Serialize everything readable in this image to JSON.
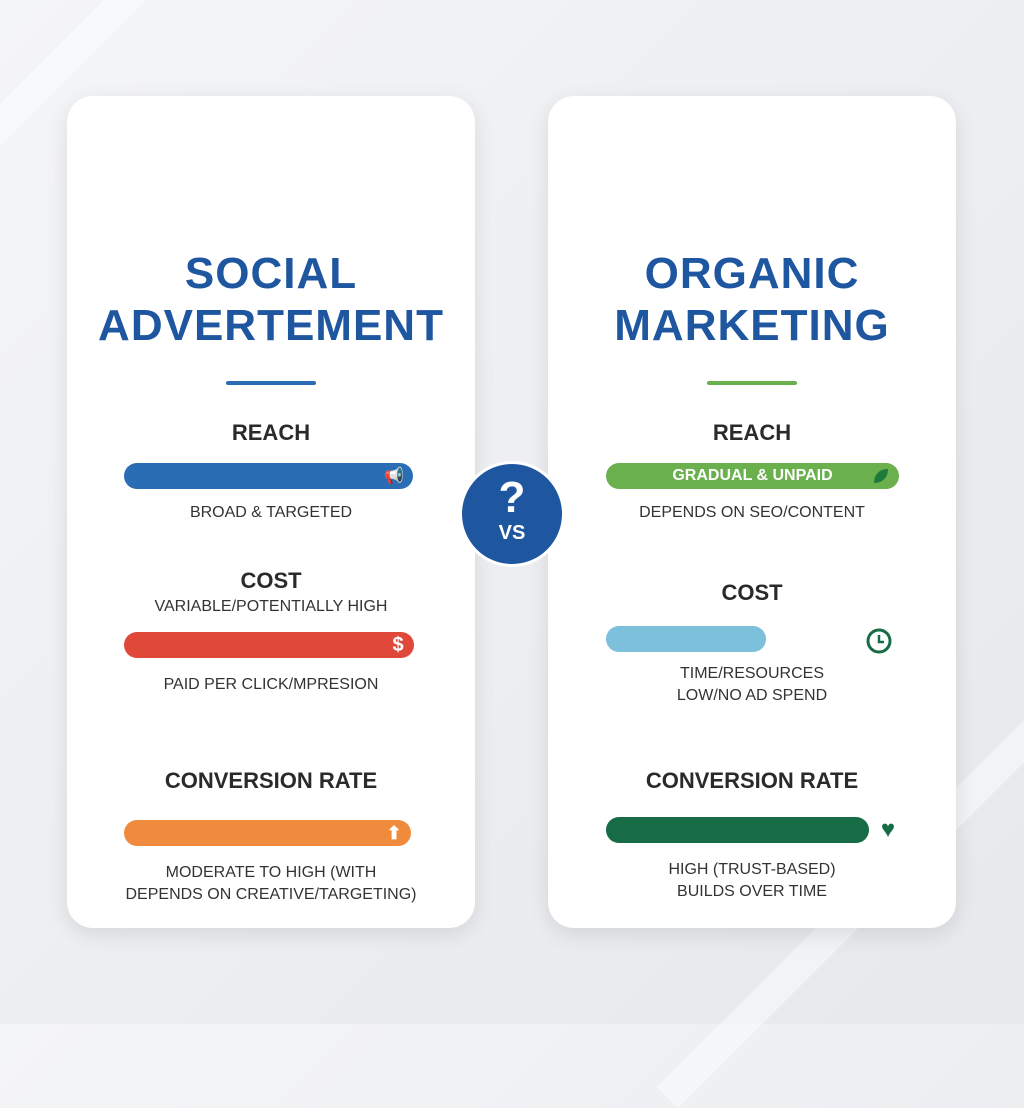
{
  "colors": {
    "left_title": "#1f56a0",
    "right_title": "#1f56a0",
    "left_divider": "#2a6db5",
    "right_divider": "#6ab04c",
    "reach_left": "#2a6db5",
    "cost_left": "#e0483a",
    "conversion_left": "#f08a3c",
    "reach_right": "#6ab04c",
    "cost_right": "#7cc0dc",
    "conversion_right": "#176b45"
  },
  "left": {
    "title_line1": "SOCIAL",
    "title_line2": "ADVERTEMENT",
    "reach": {
      "heading": "REACH",
      "note": "BROAD & TARGETED",
      "icon": "megaphone-icon",
      "fill": 1.0
    },
    "cost": {
      "heading": "COST",
      "subheading": "VARIABLE/POTENTIALLY HIGH",
      "note": "PAID PER CLICK/MPRESION",
      "icon": "dollar-icon",
      "fill": 1.0
    },
    "conversion": {
      "heading": "CONVERSION RATE",
      "note_line1": "MODERATE TO HIGH (WITH",
      "note_line2": "DEPENDS ON CREATIVE/TARGETING)",
      "icon": "arrow-up-icon",
      "fill": 1.0
    }
  },
  "right": {
    "title_line1": "ORGANIC",
    "title_line2": "MARKETING",
    "reach": {
      "heading": "REACH",
      "bar_label": "GRADUAL & UNPAID",
      "note": "DEPENDS ON SEO/CONTENT",
      "icon": "leaf-icon",
      "fill": 1.0
    },
    "cost": {
      "heading": "COST",
      "note_line1": "TIME/RESOURCES",
      "note_line2": "LOW/NO AD SPEND",
      "icon": "clock-icon",
      "fill": 0.55
    },
    "conversion": {
      "heading": "CONVERSION RATE",
      "note_line1": "HIGH (TRUST-BASED)",
      "note_line2": "BUILDS OVER TIME",
      "icon": "heart-icon",
      "fill": 0.9
    }
  },
  "vs": {
    "question": "?",
    "label": "VS"
  }
}
